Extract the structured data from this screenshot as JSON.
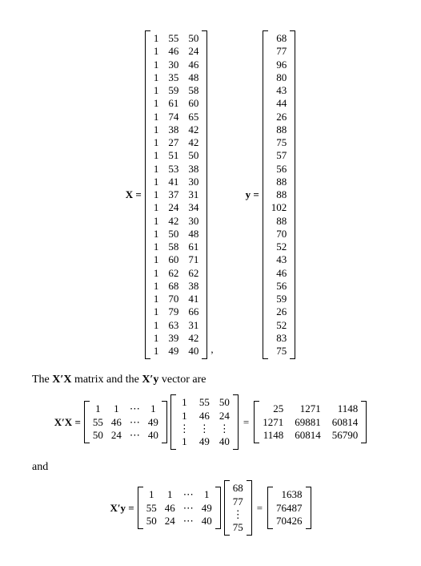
{
  "font": {
    "family": "Times New Roman",
    "body_size_pt": 13,
    "prose_size_pt": 14,
    "color": "#000000"
  },
  "background_color": "#ffffff",
  "bracket_color": "#000000",
  "labels": {
    "X_eq": "X =",
    "y_eq": "y =",
    "XtX_eq": "X′X =",
    "Xty_eq": "X′y =",
    "eq": "=",
    "comma": ",",
    "ellipsis": "⋯",
    "vdots": "⋮"
  },
  "prose": {
    "line1": "The X′X matrix and the X′y vector are",
    "and": "and"
  },
  "X": {
    "type": "matrix",
    "rows": 25,
    "cols": 3,
    "data": [
      [
        1,
        55,
        50
      ],
      [
        1,
        46,
        24
      ],
      [
        1,
        30,
        46
      ],
      [
        1,
        35,
        48
      ],
      [
        1,
        59,
        58
      ],
      [
        1,
        61,
        60
      ],
      [
        1,
        74,
        65
      ],
      [
        1,
        38,
        42
      ],
      [
        1,
        27,
        42
      ],
      [
        1,
        51,
        50
      ],
      [
        1,
        53,
        38
      ],
      [
        1,
        41,
        30
      ],
      [
        1,
        37,
        31
      ],
      [
        1,
        24,
        34
      ],
      [
        1,
        42,
        30
      ],
      [
        1,
        50,
        48
      ],
      [
        1,
        58,
        61
      ],
      [
        1,
        60,
        71
      ],
      [
        1,
        62,
        62
      ],
      [
        1,
        68,
        38
      ],
      [
        1,
        70,
        41
      ],
      [
        1,
        79,
        66
      ],
      [
        1,
        63,
        31
      ],
      [
        1,
        39,
        42
      ],
      [
        1,
        49,
        40
      ]
    ]
  },
  "y": {
    "type": "vector",
    "rows": 25,
    "data": [
      68,
      77,
      96,
      80,
      43,
      44,
      26,
      88,
      75,
      57,
      56,
      88,
      88,
      102,
      88,
      70,
      52,
      43,
      46,
      56,
      59,
      26,
      52,
      83,
      75
    ]
  },
  "Xt_display": {
    "type": "matrix",
    "rows": 3,
    "cols": 4,
    "data": [
      [
        "1",
        "1",
        "⋯",
        "1"
      ],
      [
        "55",
        "46",
        "⋯",
        "49"
      ],
      [
        "50",
        "24",
        "⋯",
        "40"
      ]
    ]
  },
  "X_short": {
    "type": "matrix",
    "rows": 4,
    "cols": 3,
    "data": [
      [
        "1",
        "55",
        "50"
      ],
      [
        "1",
        "46",
        "24"
      ],
      [
        "⋮",
        "⋮",
        "⋮"
      ],
      [
        "1",
        "49",
        "40"
      ]
    ]
  },
  "XtX_result": {
    "type": "matrix",
    "rows": 3,
    "cols": 3,
    "data": [
      [
        25,
        1271,
        1148
      ],
      [
        1271,
        69881,
        60814
      ],
      [
        1148,
        60814,
        56790
      ]
    ]
  },
  "y_short": {
    "type": "vector",
    "rows": 4,
    "data": [
      "68",
      "77",
      "⋮",
      "75"
    ]
  },
  "Xty_result": {
    "type": "vector",
    "rows": 3,
    "data": [
      1638,
      76487,
      70426
    ]
  }
}
